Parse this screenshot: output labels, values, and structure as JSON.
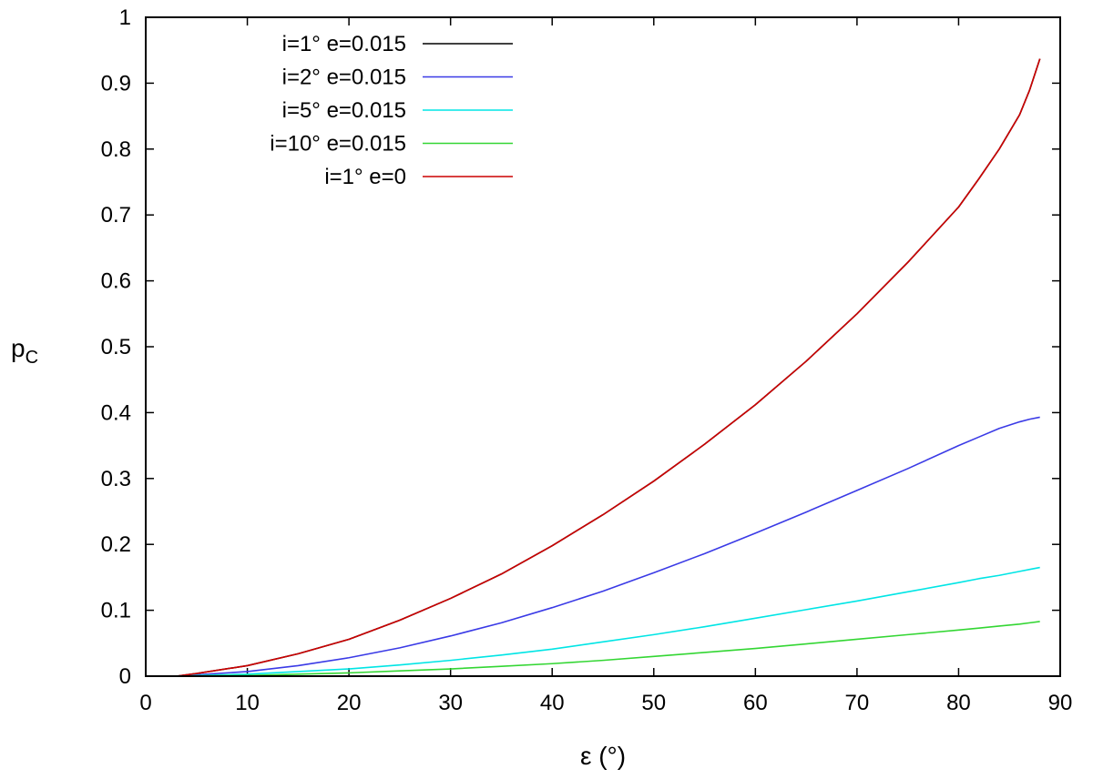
{
  "chart_data": {
    "type": "line",
    "title": "",
    "xlabel": "ε (°)",
    "ylabel": "p",
    "ylabel_subscript": "C",
    "xlim": [
      0,
      90
    ],
    "ylim": [
      0,
      1
    ],
    "x_ticks": [
      0,
      10,
      20,
      30,
      40,
      50,
      60,
      70,
      80,
      90
    ],
    "y_ticks": [
      0,
      0.1,
      0.2,
      0.3,
      0.4,
      0.5,
      0.6,
      0.7,
      0.8,
      0.9,
      1
    ],
    "x_tick_labels": [
      "0",
      "10",
      "20",
      "30",
      "40",
      "50",
      "60",
      "70",
      "80",
      "90"
    ],
    "y_tick_labels": [
      "0",
      "0.1",
      "0.2",
      "0.3",
      "0.4",
      "0.5",
      "0.6",
      "0.7",
      "0.8",
      "0.9",
      "1"
    ],
    "grid": false,
    "legend_position": "top-left",
    "x": [
      3,
      5,
      10,
      15,
      20,
      25,
      30,
      35,
      40,
      45,
      50,
      55,
      60,
      65,
      70,
      75,
      80,
      82,
      84,
      86,
      87,
      88
    ],
    "series": [
      {
        "name": "i=1° e=0.015",
        "color": "#000000",
        "values": [
          0.0,
          0.004,
          0.016,
          0.034,
          0.056,
          0.085,
          0.118,
          0.155,
          0.198,
          0.245,
          0.296,
          0.352,
          0.412,
          0.478,
          0.55,
          0.628,
          0.712,
          0.755,
          0.8,
          0.852,
          0.89,
          0.937
        ]
      },
      {
        "name": "i=2° e=0.015",
        "color": "#3a3ae6",
        "values": [
          0.0,
          0.002,
          0.007,
          0.016,
          0.028,
          0.043,
          0.061,
          0.081,
          0.104,
          0.129,
          0.157,
          0.186,
          0.217,
          0.249,
          0.282,
          0.315,
          0.35,
          0.363,
          0.376,
          0.386,
          0.39,
          0.393
        ]
      },
      {
        "name": "i=5° e=0.015",
        "color": "#00e5e5",
        "values": [
          0.0,
          0.001,
          0.003,
          0.007,
          0.011,
          0.017,
          0.024,
          0.032,
          0.041,
          0.052,
          0.063,
          0.075,
          0.088,
          0.101,
          0.114,
          0.128,
          0.142,
          0.148,
          0.153,
          0.159,
          0.162,
          0.165
        ]
      },
      {
        "name": "i=10° e=0.015",
        "color": "#33d633",
        "values": [
          0.0,
          0.0005,
          0.001,
          0.003,
          0.005,
          0.008,
          0.011,
          0.015,
          0.019,
          0.024,
          0.03,
          0.036,
          0.042,
          0.049,
          0.056,
          0.063,
          0.07,
          0.073,
          0.076,
          0.079,
          0.081,
          0.083
        ]
      },
      {
        "name": "i=1° e=0",
        "color": "#cc0000",
        "values": [
          0.0,
          0.004,
          0.016,
          0.034,
          0.056,
          0.085,
          0.118,
          0.155,
          0.198,
          0.245,
          0.296,
          0.352,
          0.412,
          0.478,
          0.55,
          0.628,
          0.712,
          0.755,
          0.8,
          0.852,
          0.89,
          0.937
        ]
      }
    ]
  }
}
